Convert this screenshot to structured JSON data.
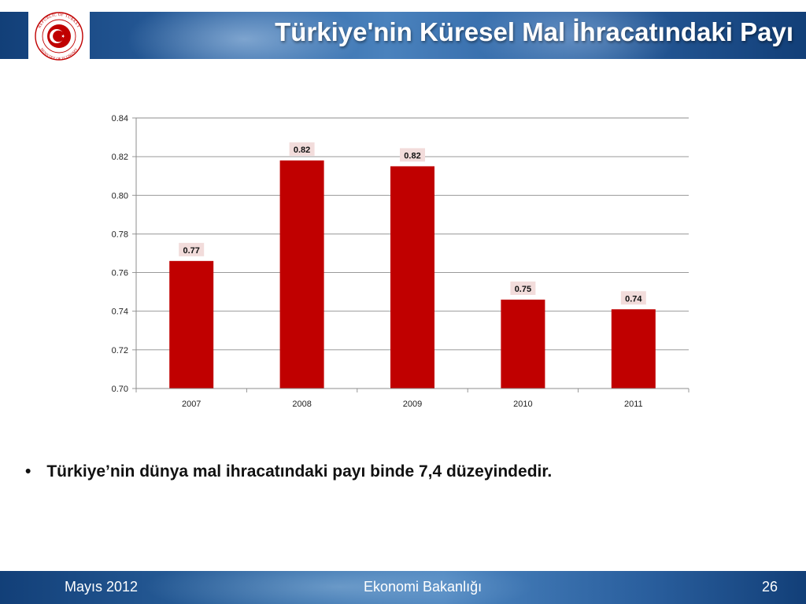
{
  "slide": {
    "title": "Türkiye'nin Küresel Mal İhracatındaki Payı",
    "bullet_text": "Türkiye’nin dünya mal ihracatındaki payı binde 7,4 düzeyindedir.",
    "bullet_char": "•"
  },
  "footer": {
    "left": "Mayıs 2012",
    "center": "Ekonomi Bakanlığı",
    "page_number": "26"
  },
  "logo": {
    "top_text": "REPUBLIC OF TURKEY",
    "bottom_text": "MINISTRY OF ECONOMY",
    "color": "#c00000"
  },
  "colors": {
    "bar": "#c00000",
    "label_bg": "#f2dcdb",
    "header_blue": "#1f4e8c"
  },
  "chart_data": {
    "type": "bar",
    "categories": [
      "2007",
      "2008",
      "2009",
      "2010",
      "2011"
    ],
    "values": [
      0.766,
      0.818,
      0.815,
      0.746,
      0.741
    ],
    "data_labels": [
      "0.77",
      "0.82",
      "0.82",
      "0.75",
      "0.74"
    ],
    "y_ticks": [
      "0.70",
      "0.72",
      "0.74",
      "0.76",
      "0.78",
      "0.80",
      "0.82",
      "0.84"
    ],
    "ylim": [
      0.7,
      0.84
    ],
    "grid": true,
    "legend": "none",
    "title": "",
    "xlabel": "",
    "ylabel": ""
  }
}
